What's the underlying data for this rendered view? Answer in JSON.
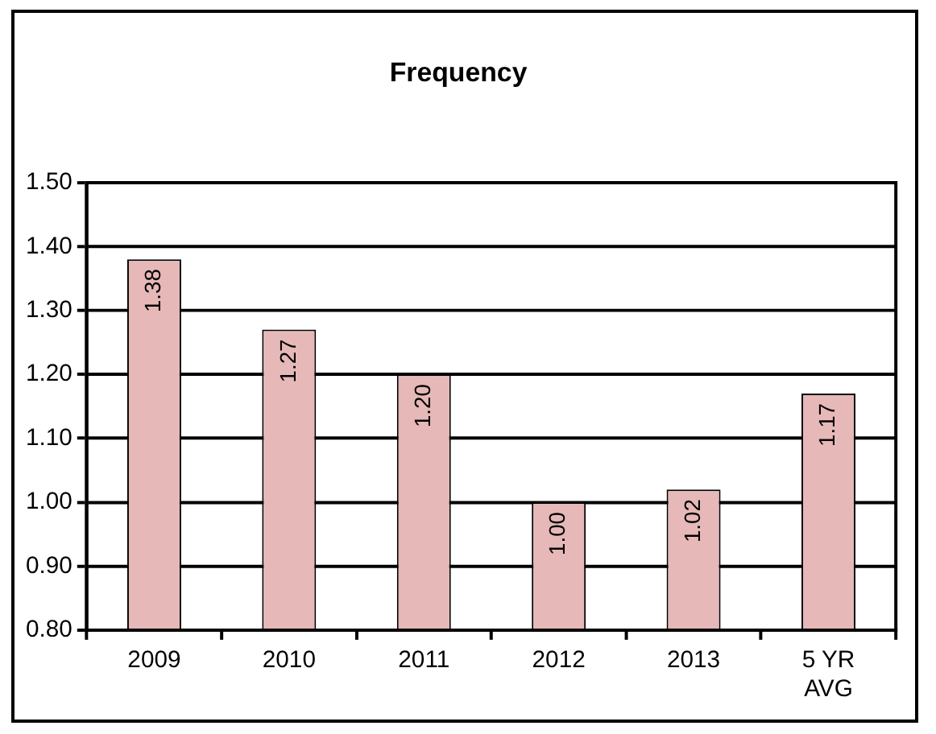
{
  "chart_data": {
    "type": "bar",
    "title": "Frequency",
    "categories": [
      "2009",
      "2010",
      "2011",
      "2012",
      "2013",
      "5 YR AVG"
    ],
    "values": [
      1.38,
      1.27,
      1.2,
      1.0,
      1.02,
      1.17
    ],
    "value_labels": [
      "1.38",
      "1.27",
      "1.20",
      "1.00",
      "1.02",
      "1.17"
    ],
    "color": "#e6b8b8",
    "ylim": [
      0.8,
      1.5
    ],
    "yticks": [
      {
        "value": 0.8,
        "label": "0.80"
      },
      {
        "value": 0.9,
        "label": "0.90"
      },
      {
        "value": 1.0,
        "label": "1.00"
      },
      {
        "value": 1.1,
        "label": "1.10"
      },
      {
        "value": 1.2,
        "label": "1.20"
      },
      {
        "value": 1.3,
        "label": "1.30"
      },
      {
        "value": 1.4,
        "label": "1.40"
      },
      {
        "value": 1.5,
        "label": "1.50"
      }
    ],
    "grid": "y",
    "legend": false
  }
}
